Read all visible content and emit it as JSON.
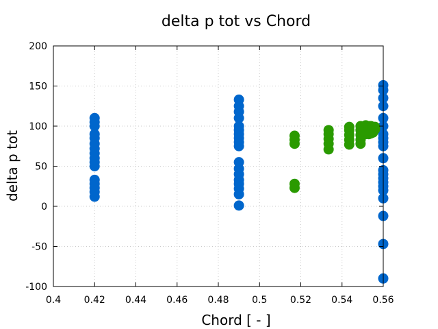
{
  "chart_data": {
    "type": "scatter",
    "title": "delta p tot vs Chord",
    "xlabel": "Chord [ - ]",
    "ylabel": "delta p tot",
    "xlim": [
      0.4,
      0.56
    ],
    "ylim": [
      -100,
      200
    ],
    "xticks": [
      0.4,
      0.42,
      0.44,
      0.46,
      0.48,
      0.5,
      0.52,
      0.54,
      0.56
    ],
    "xtick_labels": [
      "0.4",
      "0.42",
      "0.44",
      "0.46",
      "0.48",
      "0.5",
      "0.52",
      "0.54",
      "0.56"
    ],
    "yticks": [
      -100,
      -50,
      0,
      50,
      100,
      150,
      200
    ],
    "ytick_labels": [
      "-100",
      "-50",
      "0",
      "50",
      "100",
      "150",
      "200"
    ],
    "grid": true,
    "colors": {
      "series_1": "#0066cc",
      "series_2": "#2a9a00",
      "grid": "#c8c8c8"
    },
    "series": [
      {
        "color": "#0066cc",
        "points": [
          [
            0.42,
            110
          ],
          [
            0.42,
            105
          ],
          [
            0.42,
            100
          ],
          [
            0.42,
            90
          ],
          [
            0.42,
            85
          ],
          [
            0.42,
            78
          ],
          [
            0.42,
            72
          ],
          [
            0.42,
            66
          ],
          [
            0.42,
            60
          ],
          [
            0.42,
            55
          ],
          [
            0.42,
            50
          ],
          [
            0.42,
            33
          ],
          [
            0.42,
            28
          ],
          [
            0.42,
            23
          ],
          [
            0.42,
            18
          ],
          [
            0.42,
            12
          ],
          [
            0.49,
            133
          ],
          [
            0.49,
            125
          ],
          [
            0.49,
            118
          ],
          [
            0.49,
            110
          ],
          [
            0.49,
            100
          ],
          [
            0.49,
            95
          ],
          [
            0.49,
            90
          ],
          [
            0.49,
            85
          ],
          [
            0.49,
            80
          ],
          [
            0.49,
            75
          ],
          [
            0.49,
            55
          ],
          [
            0.49,
            47
          ],
          [
            0.49,
            40
          ],
          [
            0.49,
            33
          ],
          [
            0.49,
            28
          ],
          [
            0.49,
            22
          ],
          [
            0.49,
            15
          ],
          [
            0.49,
            1
          ],
          [
            0.56,
            151
          ],
          [
            0.56,
            145
          ],
          [
            0.56,
            135
          ],
          [
            0.56,
            125
          ],
          [
            0.56,
            110
          ],
          [
            0.56,
            100
          ],
          [
            0.56,
            90
          ],
          [
            0.56,
            85
          ],
          [
            0.56,
            80
          ],
          [
            0.56,
            75
          ],
          [
            0.56,
            60
          ],
          [
            0.56,
            45
          ],
          [
            0.56,
            40
          ],
          [
            0.56,
            35
          ],
          [
            0.56,
            30
          ],
          [
            0.56,
            25
          ],
          [
            0.56,
            20
          ],
          [
            0.56,
            10
          ],
          [
            0.56,
            -12
          ],
          [
            0.56,
            -47
          ],
          [
            0.56,
            -90
          ]
        ]
      },
      {
        "color": "#2a9a00",
        "points": [
          [
            0.517,
            88
          ],
          [
            0.517,
            83
          ],
          [
            0.517,
            78
          ],
          [
            0.517,
            28
          ],
          [
            0.517,
            23
          ],
          [
            0.5335,
            95
          ],
          [
            0.5335,
            90
          ],
          [
            0.5335,
            84
          ],
          [
            0.5335,
            78
          ],
          [
            0.5335,
            71
          ],
          [
            0.5435,
            99
          ],
          [
            0.5435,
            95
          ],
          [
            0.5435,
            89
          ],
          [
            0.5435,
            83
          ],
          [
            0.5435,
            77
          ],
          [
            0.549,
            100
          ],
          [
            0.549,
            95
          ],
          [
            0.549,
            89
          ],
          [
            0.549,
            83
          ],
          [
            0.549,
            78
          ],
          [
            0.5515,
            101
          ],
          [
            0.5515,
            96
          ],
          [
            0.5515,
            90
          ],
          [
            0.553,
            100
          ],
          [
            0.553,
            95
          ],
          [
            0.553,
            90
          ],
          [
            0.554,
            100
          ],
          [
            0.554,
            95
          ],
          [
            0.554,
            91
          ],
          [
            0.555,
            99
          ],
          [
            0.555,
            95
          ],
          [
            0.555,
            92
          ],
          [
            0.556,
            99
          ],
          [
            0.556,
            96
          ]
        ]
      }
    ]
  }
}
